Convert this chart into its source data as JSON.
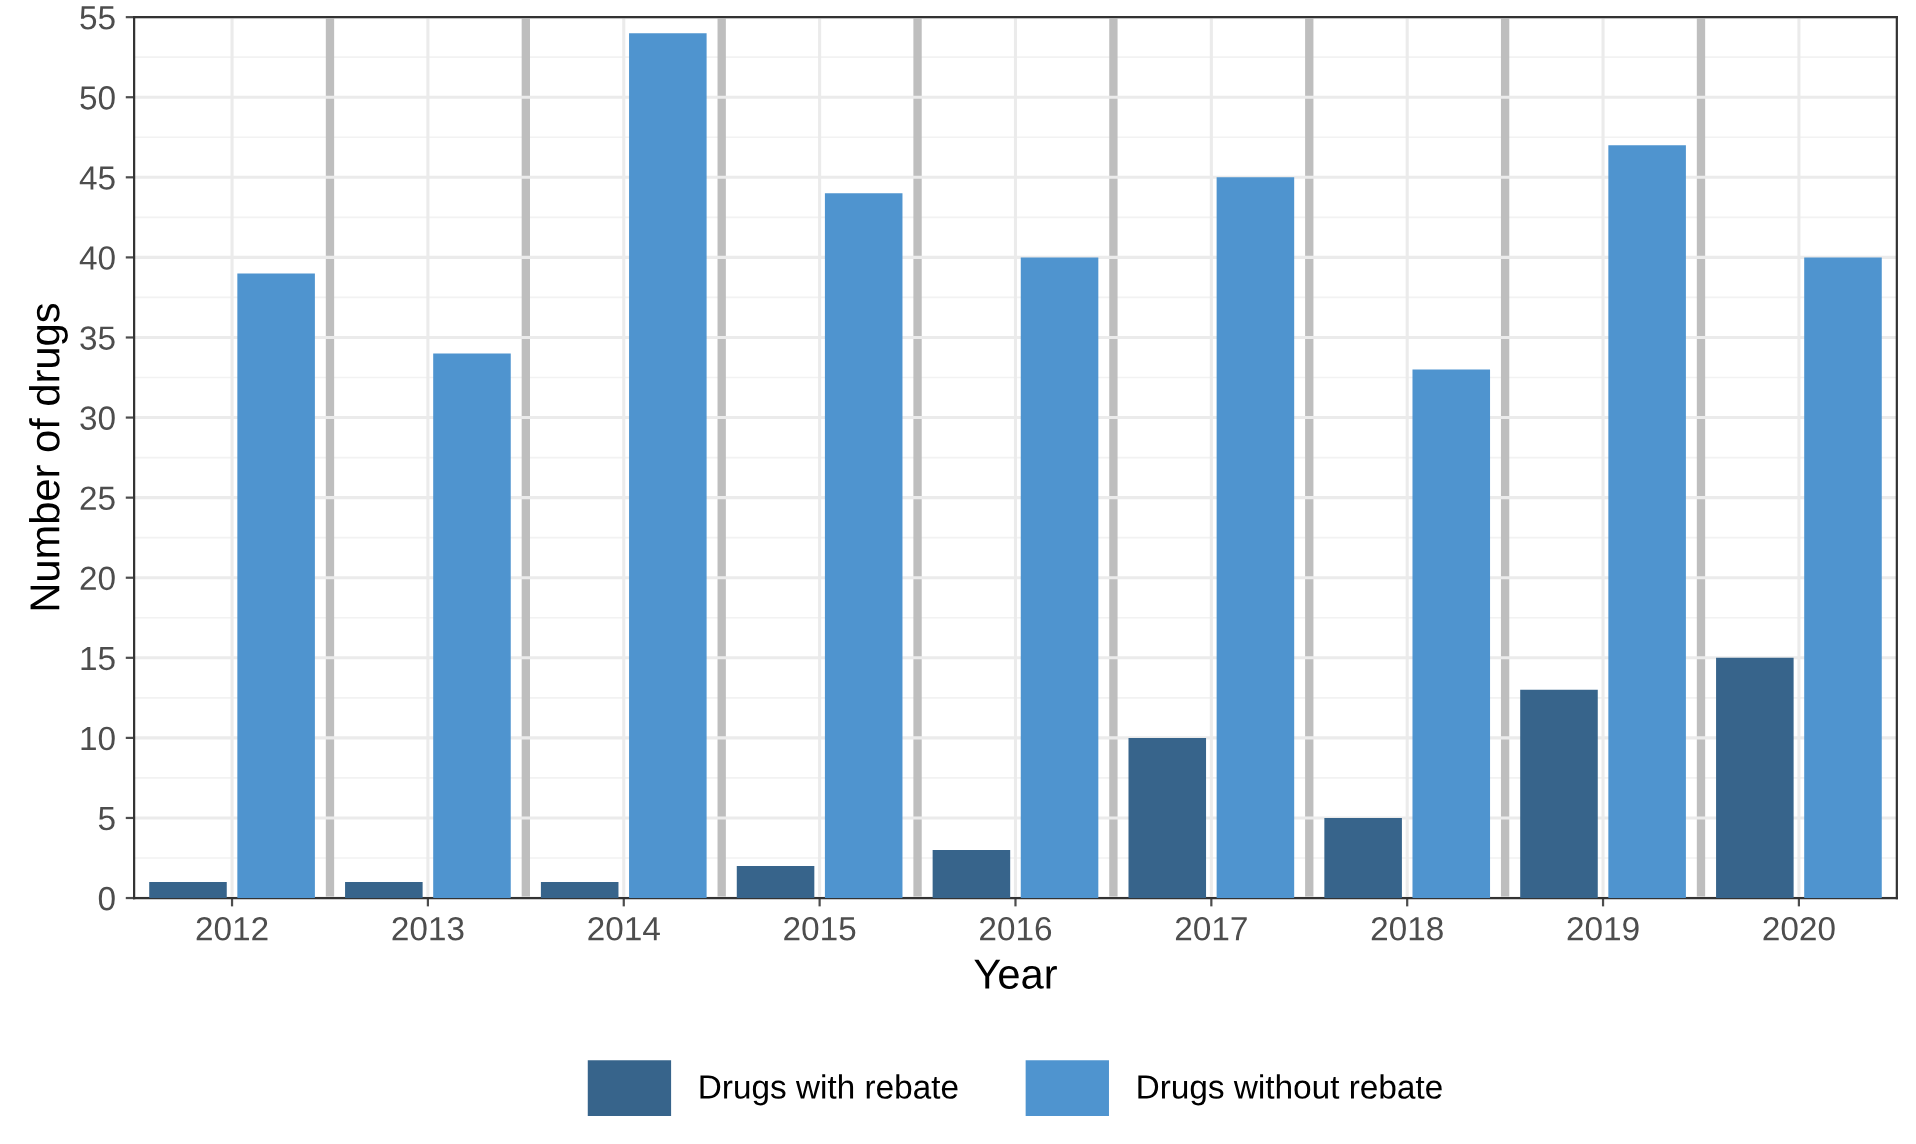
{
  "chart_data": {
    "type": "bar",
    "xlabel": "Year",
    "ylabel": "Number of drugs",
    "categories": [
      "2012",
      "2013",
      "2014",
      "2015",
      "2016",
      "2017",
      "2018",
      "2019",
      "2020"
    ],
    "series": [
      {
        "name": "Drugs with rebate",
        "color": "#37648b",
        "values": [
          1,
          1,
          1,
          2,
          3,
          10,
          5,
          13,
          15
        ]
      },
      {
        "name": "Drugs without rebate",
        "color": "#4f94cf",
        "values": [
          39,
          34,
          54,
          44,
          40,
          45,
          33,
          47,
          40
        ]
      }
    ],
    "ylim": [
      0,
      55
    ],
    "yticks": [
      0,
      5,
      10,
      15,
      20,
      25,
      30,
      35,
      40,
      45,
      50,
      55
    ],
    "grid": true,
    "legend": "bottom"
  }
}
